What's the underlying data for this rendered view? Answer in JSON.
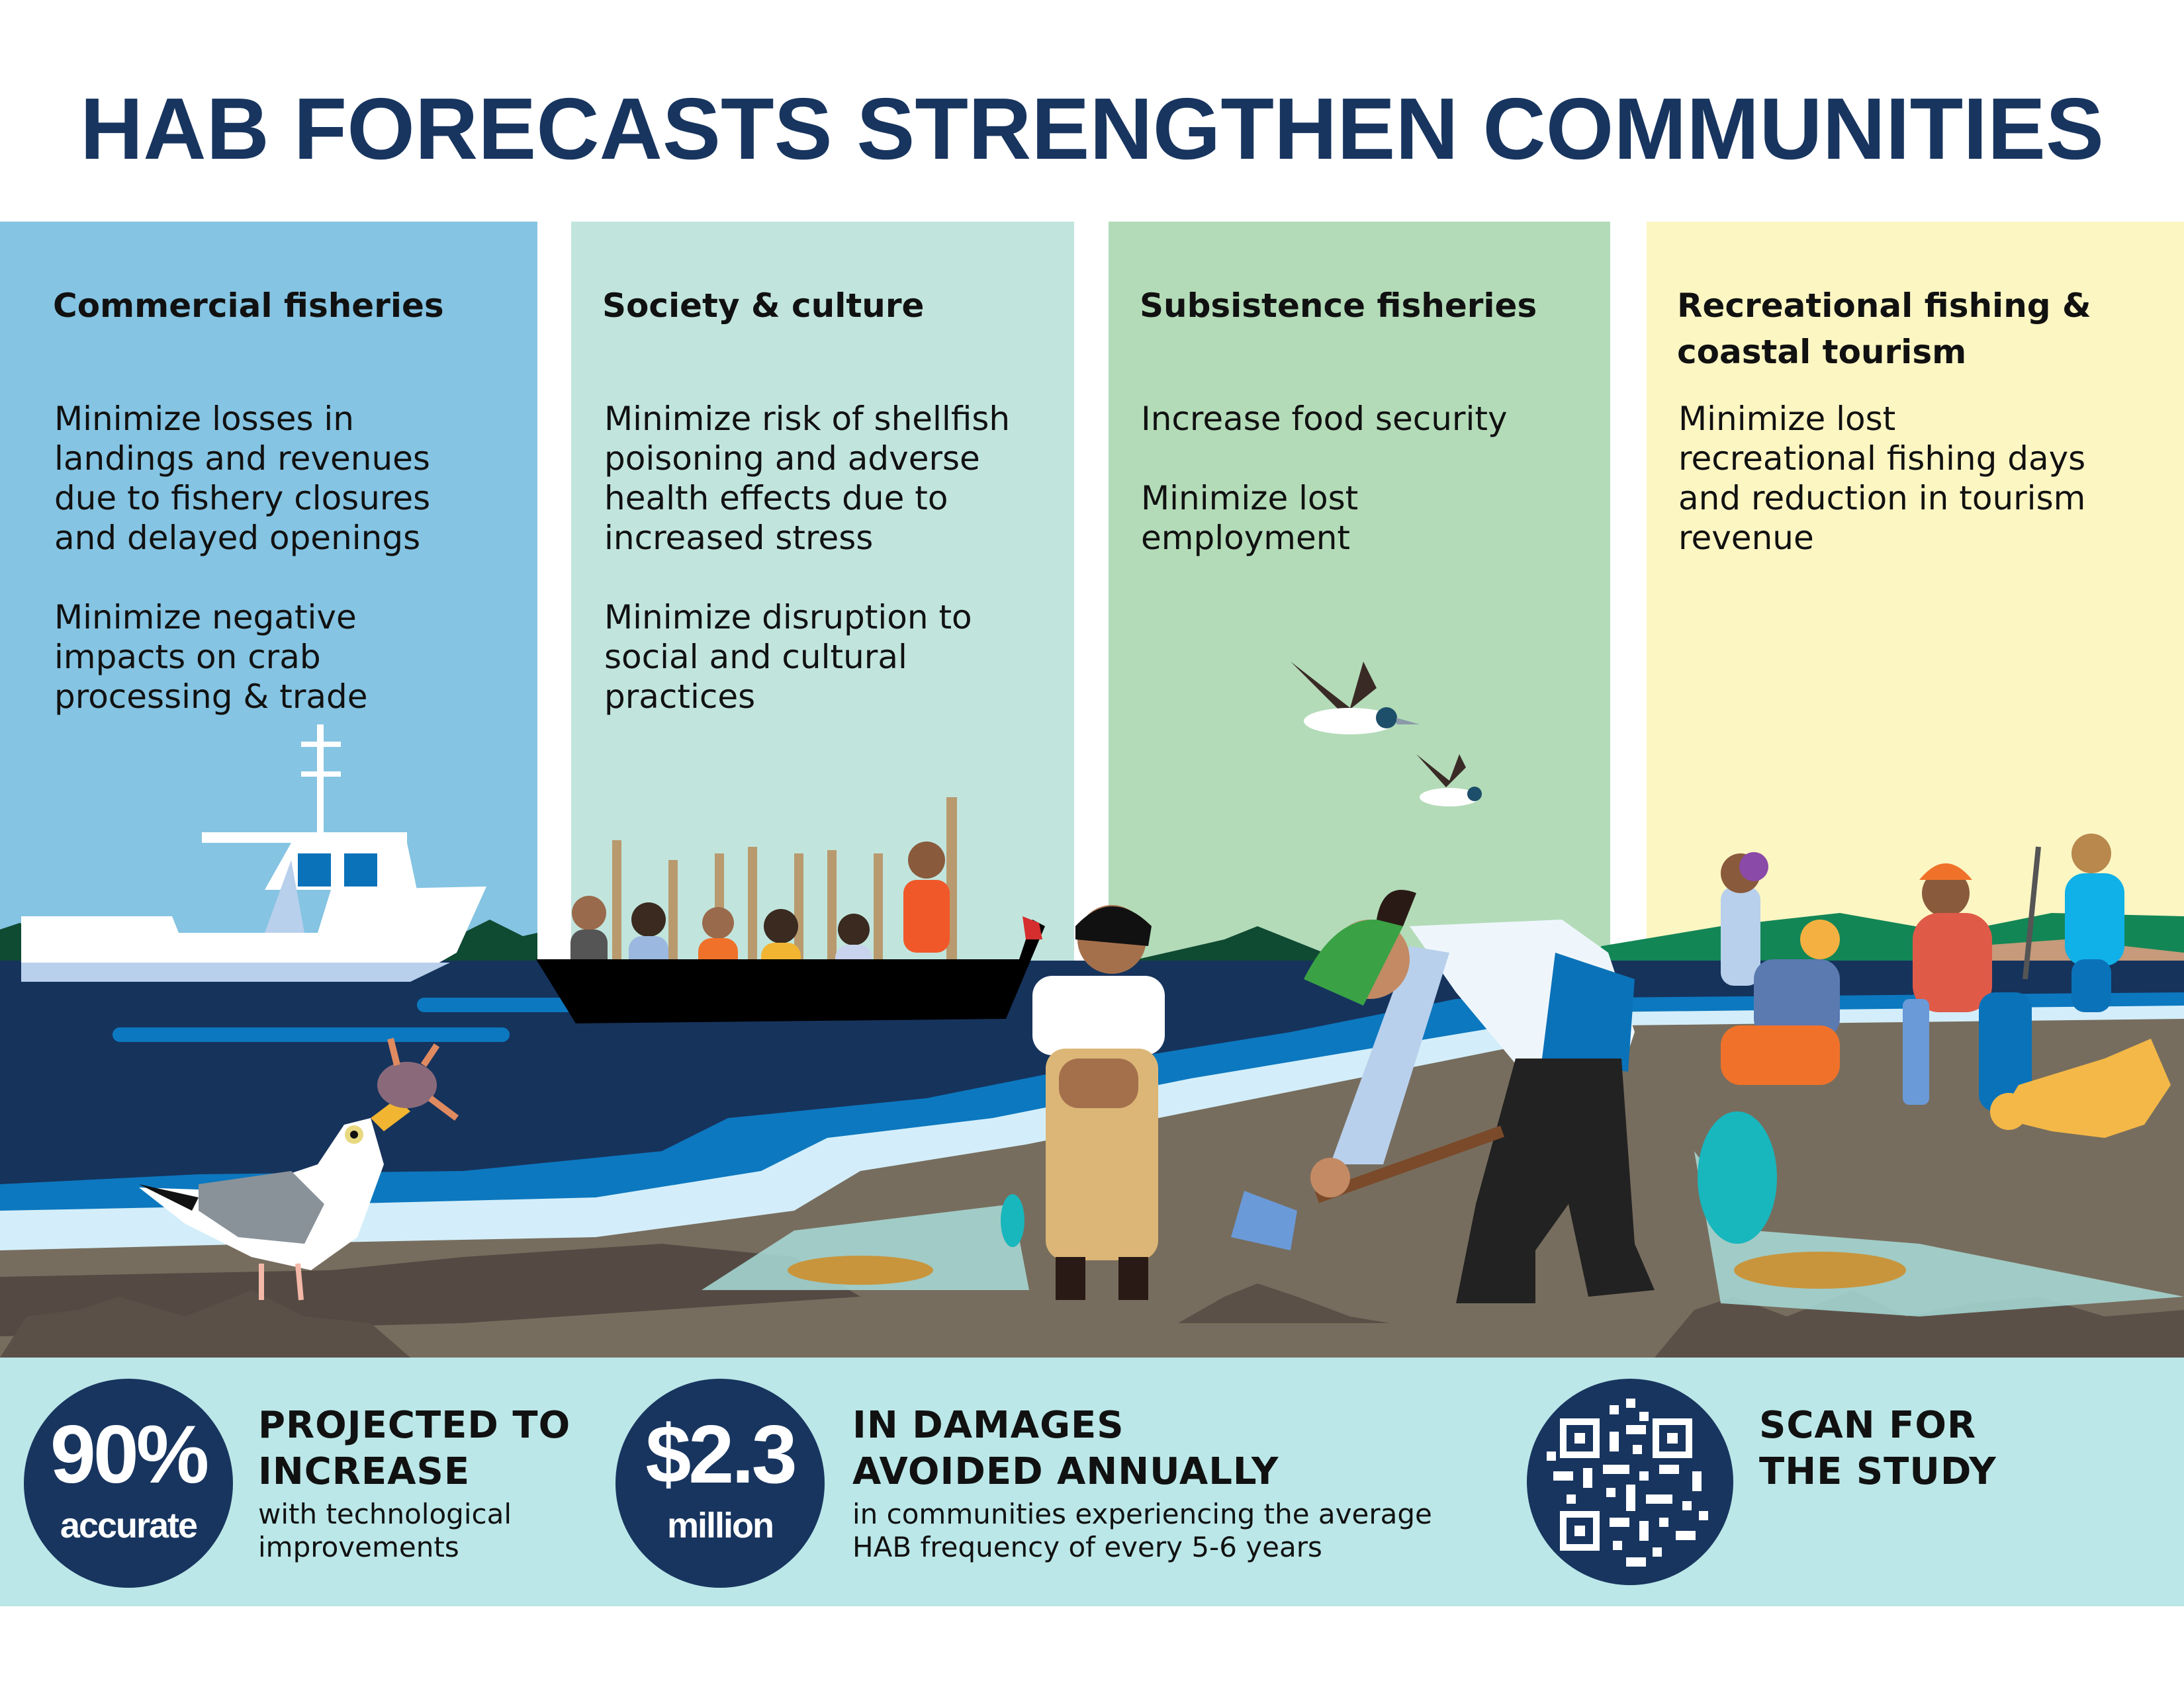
{
  "title": "HAB FORECASTS STRENGTHEN COMMUNITIES",
  "colors": {
    "navy": "#18355f",
    "commercial": "#85c4e2",
    "society": "#c1e5dd",
    "subsistence": "#b3dbb8",
    "recreational": "#fcf6c3",
    "footer": "#bbe7e8"
  },
  "columns": [
    {
      "heading": "Commercial fisheries",
      "items": [
        "Minimize losses in landings and revenues due to fishery closures and delayed openings",
        "Minimize negative impacts on crab processing & trade"
      ]
    },
    {
      "heading": "Society & culture",
      "items": [
        "Minimize risk of shellfish poisoning and adverse health effects due to increased stress",
        "Minimize disruption to social and cultural practices"
      ]
    },
    {
      "heading": "Subsistence fisheries",
      "items": [
        "Increase food security",
        "Minimize lost employment"
      ]
    },
    {
      "heading": "Recreational fishing & coastal tourism",
      "items": [
        "Minimize lost recreational fishing days and reduction in tourism revenue"
      ]
    }
  ],
  "stats": [
    {
      "value": "90%",
      "unit": "accurate",
      "heading_1": "PROJECTED TO",
      "heading_2": "INCREASE",
      "detail_1": "with technological",
      "detail_2": "improvements"
    },
    {
      "value": "$2.3",
      "unit": "million",
      "heading_1": "IN DAMAGES",
      "heading_2": "AVOIDED ANNUALLY",
      "detail_1": "in communities experiencing the average",
      "detail_2": "HAB frequency of every 5-6 years"
    }
  ],
  "qr": {
    "heading_1": "SCAN FOR",
    "heading_2": "THE STUDY",
    "icon": "qr-code-icon"
  }
}
